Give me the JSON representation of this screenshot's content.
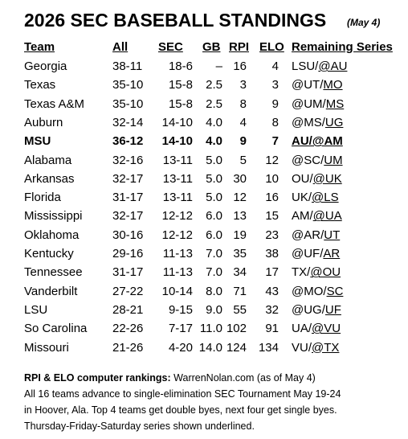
{
  "header": {
    "title": "2026 SEC BASEBALL STANDINGS",
    "date": "(May 4)"
  },
  "table": {
    "columns": [
      "Team",
      "All",
      "SEC",
      "GB",
      "RPI",
      "ELO",
      "Remaining Series"
    ],
    "rows": [
      {
        "cells": [
          "Georgia",
          "38-11",
          "18-6",
          "–",
          "16",
          "4"
        ],
        "remaining": [
          {
            "text": "LSU/"
          },
          {
            "text": "@AU",
            "underlined": true
          }
        ]
      },
      {
        "cells": [
          "Texas",
          "35-10",
          "15-8",
          "2.5",
          "3",
          "3"
        ],
        "remaining": [
          {
            "text": "@UT/"
          },
          {
            "text": "MO",
            "underlined": true
          }
        ]
      },
      {
        "cells": [
          "Texas A&M",
          "35-10",
          "15-8",
          "2.5",
          "8",
          "9"
        ],
        "remaining": [
          {
            "text": "@UM/"
          },
          {
            "text": "MS",
            "underlined": true
          }
        ]
      },
      {
        "cells": [
          "Auburn",
          "32-14",
          "14-10",
          "4.0",
          "4",
          "8"
        ],
        "remaining": [
          {
            "text": "@MS/"
          },
          {
            "text": "UG",
            "underlined": true
          }
        ]
      },
      {
        "cells": [
          "MSU",
          "36-12",
          "14-10",
          "4.0",
          "9",
          "7"
        ],
        "bold": true,
        "remaining": [
          {
            "text": "AU/@AM",
            "underlined": true
          }
        ]
      },
      {
        "cells": [
          "Alabama",
          "32-16",
          "13-11",
          "5.0",
          "5",
          "12"
        ],
        "remaining": [
          {
            "text": "@SC/"
          },
          {
            "text": "UM",
            "underlined": true
          }
        ]
      },
      {
        "cells": [
          "Arkansas",
          "32-17",
          "13-11",
          "5.0",
          "30",
          "10"
        ],
        "remaining": [
          {
            "text": "OU/"
          },
          {
            "text": "@UK",
            "underlined": true
          }
        ]
      },
      {
        "cells": [
          "Florida",
          "31-17",
          "13-11",
          "5.0",
          "12",
          "16"
        ],
        "remaining": [
          {
            "text": "UK/"
          },
          {
            "text": "@LS",
            "underlined": true
          }
        ]
      },
      {
        "cells": [
          "Mississippi",
          "32-17",
          "12-12",
          "6.0",
          "13",
          "15"
        ],
        "remaining": [
          {
            "text": "AM/"
          },
          {
            "text": "@UA",
            "underlined": true
          }
        ]
      },
      {
        "cells": [
          "Oklahoma",
          "30-16",
          "12-12",
          "6.0",
          "19",
          "23"
        ],
        "remaining": [
          {
            "text": "@AR/"
          },
          {
            "text": "UT",
            "underlined": true
          }
        ]
      },
      {
        "cells": [
          "Kentucky",
          "29-16",
          "11-13",
          "7.0",
          "35",
          "38"
        ],
        "remaining": [
          {
            "text": "@UF/"
          },
          {
            "text": "AR",
            "underlined": true
          }
        ]
      },
      {
        "cells": [
          "Tennessee",
          "31-17",
          "11-13",
          "7.0",
          "34",
          "17"
        ],
        "remaining": [
          {
            "text": "TX/"
          },
          {
            "text": "@OU",
            "underlined": true
          }
        ]
      },
      {
        "cells": [
          "Vanderbilt",
          "27-22",
          "10-14",
          "8.0",
          "71",
          "43"
        ],
        "remaining": [
          {
            "text": "@MO/"
          },
          {
            "text": "SC",
            "underlined": true
          }
        ]
      },
      {
        "cells": [
          "LSU",
          "28-21",
          "9-15",
          "9.0",
          "55",
          "32"
        ],
        "remaining": [
          {
            "text": "@UG/"
          },
          {
            "text": "UF",
            "underlined": true
          }
        ]
      },
      {
        "cells": [
          "So Carolina",
          "22-26",
          "7-17",
          "11.0",
          "102",
          "91"
        ],
        "remaining": [
          {
            "text": "UA/"
          },
          {
            "text": "@VU",
            "underlined": true
          }
        ]
      },
      {
        "cells": [
          "Missouri",
          "21-26",
          "4-20",
          "14.0",
          "124",
          "134"
        ],
        "remaining": [
          {
            "text": "VU/"
          },
          {
            "text": "@TX",
            "underlined": true
          }
        ]
      }
    ]
  },
  "footer": {
    "source_label": "RPI  & ELO computer rankings:",
    "source": "WarrenNolan.com (as of May 4)",
    "lines": [
      "All 16 teams advance to single-elimination SEC Tournament May 19-24",
      "in Hoover, Ala. Top 4 teams get double byes, next four get single byes.",
      "Thursday-Friday-Saturday series shown underlined."
    ]
  }
}
